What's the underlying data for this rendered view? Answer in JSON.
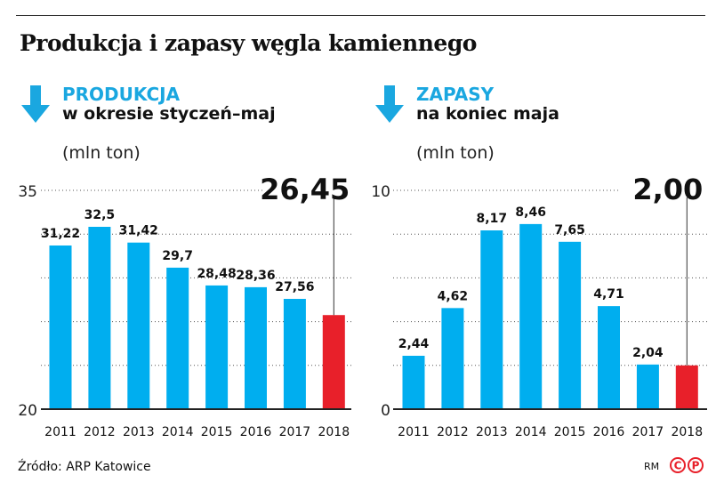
{
  "title": "Produkcja i zapasy węgla kamiennego",
  "source": "Źródło: ARP Katowice",
  "credit": "RM",
  "logo_letters": [
    "C",
    "P"
  ],
  "colors": {
    "bar": "#00aeef",
    "highlight": "#e8202a",
    "accent": "#1aa7e0"
  },
  "chart_data": [
    {
      "type": "bar",
      "heading": "PRODUKCJA",
      "subheading": "w okresie styczeń–maj",
      "unit": "(mln ton)",
      "categories": [
        "2011",
        "2012",
        "2013",
        "2014",
        "2015",
        "2016",
        "2017",
        "2018"
      ],
      "values": [
        31.22,
        32.5,
        31.42,
        29.7,
        28.48,
        28.36,
        27.56,
        26.45
      ],
      "labels": [
        "31,22",
        "32,5",
        "31,42",
        "29,7",
        "28,48",
        "28,36",
        "27,56",
        "26,45"
      ],
      "highlight_index": 7,
      "ylim": [
        20,
        35
      ],
      "yticks": [
        "20",
        "35"
      ],
      "grid": true
    },
    {
      "type": "bar",
      "heading": "ZAPASY",
      "subheading": "na koniec maja",
      "unit": "(mln ton)",
      "categories": [
        "2011",
        "2012",
        "2013",
        "2014",
        "2015",
        "2016",
        "2017",
        "2018"
      ],
      "values": [
        2.44,
        4.62,
        8.17,
        8.46,
        7.65,
        4.71,
        2.04,
        2.0
      ],
      "labels": [
        "2,44",
        "4,62",
        "8,17",
        "8,46",
        "7,65",
        "4,71",
        "2,04",
        "2,00"
      ],
      "highlight_index": 7,
      "ylim": [
        0,
        10
      ],
      "yticks": [
        "0",
        "10"
      ],
      "grid": true
    }
  ]
}
